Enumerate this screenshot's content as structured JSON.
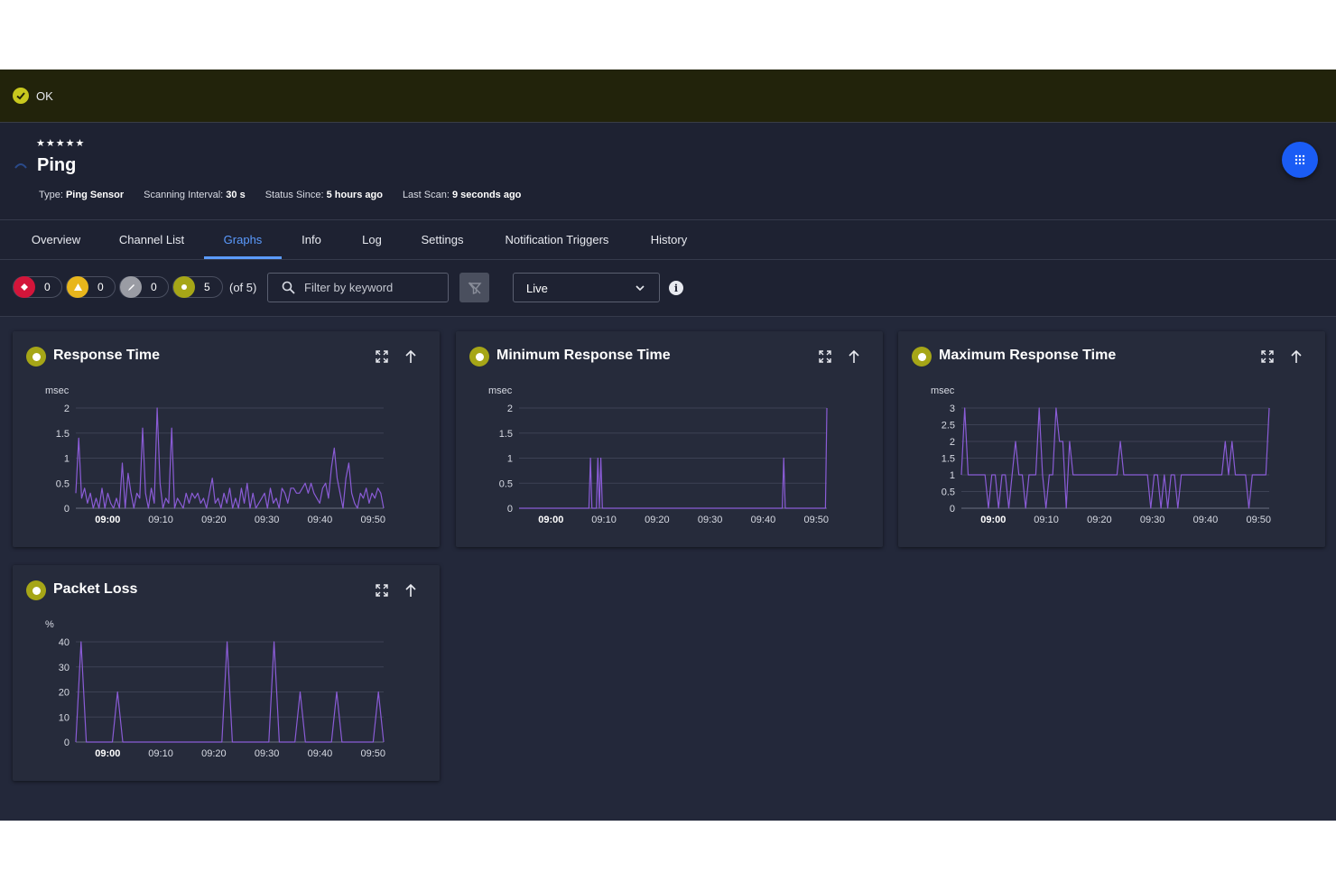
{
  "status": {
    "text": "OK",
    "icon": "check-circle-icon",
    "color": "#c8c81e"
  },
  "sensor": {
    "stars": "★★★★★",
    "name": "Ping",
    "type_label": "Type:",
    "type_value": "Ping Sensor",
    "interval_label": "Scanning Interval:",
    "interval_value": "30 s",
    "status_since_label": "Status Since:",
    "status_since_value": "5 hours ago",
    "last_scan_label": "Last Scan:",
    "last_scan_value": "9 seconds ago"
  },
  "tabs": [
    {
      "label": "Overview",
      "active": false
    },
    {
      "label": "Channel List",
      "active": false
    },
    {
      "label": "Graphs",
      "active": true
    },
    {
      "label": "Info",
      "active": false
    },
    {
      "label": "Log",
      "active": false
    },
    {
      "label": "Settings",
      "active": false
    },
    {
      "label": "Notification Triggers",
      "active": false
    },
    {
      "label": "History",
      "active": false
    }
  ],
  "filters": {
    "counts": [
      {
        "kind": "down",
        "count": "0",
        "color": "#d3153a"
      },
      {
        "kind": "warning",
        "count": "0",
        "color": "#e8b61c"
      },
      {
        "kind": "paused",
        "count": "0",
        "color": "#9a9ca4"
      },
      {
        "kind": "up",
        "count": "5",
        "color": "#a6a617"
      }
    ],
    "of_total": "(of 5)",
    "search_placeholder": "Filter by keyword",
    "range_selected": "Live"
  },
  "chart_data": [
    {
      "type": "line",
      "title": "Response Time",
      "ylabel": "msec",
      "ylim": [
        0,
        2
      ],
      "yticks": [
        "0",
        "0.5",
        "1",
        "1.5",
        "2"
      ],
      "xticks": [
        "09:00",
        "09:10",
        "09:20",
        "09:30",
        "09:40",
        "09:50"
      ],
      "bold_tick": "09:00",
      "x_range_min": [
        -6,
        52
      ],
      "series": [
        {
          "color": "#8a5cd6",
          "values": [
            0.3,
            1.4,
            0.2,
            0.4,
            0.1,
            0.3,
            0.0,
            0.2,
            0.0,
            0.4,
            0.0,
            0.3,
            0.1,
            0.0,
            0.2,
            0.0,
            0.9,
            0.0,
            0.7,
            0.3,
            0.0,
            0.3,
            0.2,
            1.6,
            0.3,
            0.0,
            0.4,
            0.1,
            2.0,
            0.5,
            0.0,
            0.2,
            0.1,
            1.6,
            0.0,
            0.2,
            0.1,
            0.0,
            0.3,
            0.1,
            0.3,
            0.2,
            0.3,
            0.1,
            0.2,
            0.0,
            0.3,
            0.6,
            0.1,
            0.2,
            0.0,
            0.3,
            0.1,
            0.4,
            0.0,
            0.2,
            0.0,
            0.4,
            0.1,
            0.5,
            0.0,
            0.3,
            0.0,
            0.1,
            0.2,
            0.3,
            0.0,
            0.4,
            0.1,
            0.2,
            0.0,
            0.4,
            0.3,
            0.1,
            0.4,
            0.4,
            0.3,
            0.3,
            0.4,
            0.5,
            0.3,
            0.5,
            0.3,
            0.2,
            0.1,
            0.4,
            0.5,
            0.2,
            0.8,
            1.2,
            0.6,
            0.3,
            0.0,
            0.6,
            0.9,
            0.3,
            0.1,
            0.0,
            0.3,
            0.2,
            0.4,
            0.1,
            0.3,
            0.2,
            0.4,
            0.3,
            0.0
          ]
        }
      ]
    },
    {
      "type": "line",
      "title": "Minimum Response Time",
      "ylabel": "msec",
      "ylim": [
        0,
        2
      ],
      "yticks": [
        "0",
        "0.5",
        "1",
        "1.5",
        "2"
      ],
      "xticks": [
        "09:00",
        "09:10",
        "09:20",
        "09:30",
        "09:40",
        "09:50"
      ],
      "bold_tick": "09:00",
      "x_range_min": [
        -6,
        52
      ],
      "series": [
        {
          "color": "#8a5cd6",
          "values": [
            0,
            0,
            0,
            0,
            0,
            0,
            0,
            0,
            0,
            0,
            0,
            0,
            0,
            0,
            0,
            0,
            0,
            0,
            0,
            0,
            0,
            0,
            0,
            0,
            0,
            0,
            0,
            0,
            0,
            0,
            0,
            0,
            0,
            0,
            0,
            0,
            0,
            0,
            0,
            0,
            0,
            0,
            0,
            0,
            0,
            0,
            0,
            0,
            1,
            0,
            0,
            0,
            0,
            1,
            0,
            1,
            0,
            0,
            0,
            0,
            0,
            0,
            0,
            0,
            0,
            0,
            0,
            0,
            0,
            0,
            0,
            0,
            0,
            0,
            0,
            0,
            0,
            0,
            0,
            0,
            0,
            0,
            0,
            0,
            0,
            0,
            0,
            0,
            0,
            0,
            0,
            0,
            0,
            0,
            0,
            0,
            0,
            0,
            0,
            0,
            0,
            0,
            0,
            0,
            0,
            0,
            0,
            0,
            0,
            0,
            0,
            0,
            0,
            0,
            0,
            0,
            0,
            0,
            0,
            0,
            0,
            0,
            0,
            0,
            0,
            0,
            0,
            0,
            0,
            0,
            0,
            0,
            0,
            0,
            0,
            0,
            0,
            0,
            0,
            0,
            0,
            0,
            0,
            0,
            0,
            0,
            0,
            0,
            0,
            0,
            0,
            0,
            0,
            0,
            0,
            0,
            0,
            0,
            0,
            0,
            0,
            0,
            0,
            0,
            0,
            0,
            0,
            0,
            0,
            0,
            0,
            0,
            0,
            0,
            0,
            0,
            0,
            0,
            1,
            0,
            0,
            0,
            0,
            0,
            0,
            0,
            0,
            0,
            0,
            0,
            0,
            0,
            0,
            0,
            0,
            0,
            0,
            0,
            0,
            0,
            0,
            0,
            0,
            0,
            0,
            0,
            0,
            2
          ]
        }
      ]
    },
    {
      "type": "line",
      "title": "Maximum Response Time",
      "ylabel": "msec",
      "ylim": [
        0,
        3
      ],
      "yticks": [
        "0",
        "0.5",
        "1",
        "1.5",
        "2",
        "2.5",
        "3"
      ],
      "xticks": [
        "09:00",
        "09:10",
        "09:20",
        "09:30",
        "09:40",
        "09:50"
      ],
      "bold_tick": "09:00",
      "x_range_min": [
        -6,
        52
      ],
      "series": [
        {
          "color": "#8a5cd6",
          "values": [
            1,
            3,
            1,
            1,
            1,
            1,
            1,
            1,
            0,
            1,
            1,
            0,
            1,
            1,
            0,
            1,
            2,
            1,
            1,
            0,
            1,
            1,
            1,
            3,
            1,
            0,
            1,
            1,
            3,
            2,
            2,
            0,
            2,
            1,
            1,
            1,
            1,
            1,
            1,
            1,
            1,
            1,
            1,
            1,
            1,
            1,
            1,
            2,
            1,
            1,
            1,
            1,
            1,
            1,
            1,
            1,
            0,
            1,
            1,
            0,
            1,
            0,
            1,
            1,
            0,
            1,
            1,
            1,
            1,
            1,
            1,
            1,
            1,
            1,
            1,
            1,
            1,
            1,
            2,
            1,
            2,
            1,
            1,
            1,
            1,
            0,
            1,
            1,
            1,
            1,
            1,
            3
          ]
        }
      ]
    },
    {
      "type": "line",
      "title": "Packet Loss",
      "ylabel": "%",
      "ylim": [
        0,
        40
      ],
      "yticks": [
        "0",
        "10",
        "20",
        "30",
        "40"
      ],
      "xticks": [
        "09:00",
        "09:10",
        "09:20",
        "09:30",
        "09:40",
        "09:50"
      ],
      "bold_tick": "09:00",
      "x_range_min": [
        -6,
        52
      ],
      "series": [
        {
          "color": "#8a5cd6",
          "values": [
            0,
            40,
            0,
            0,
            0,
            0,
            0,
            0,
            20,
            0,
            0,
            0,
            0,
            0,
            0,
            0,
            0,
            0,
            0,
            0,
            0,
            0,
            0,
            0,
            0,
            0,
            0,
            0,
            0,
            40,
            0,
            0,
            0,
            0,
            0,
            0,
            0,
            0,
            40,
            0,
            0,
            0,
            0,
            20,
            0,
            0,
            0,
            0,
            0,
            0,
            20,
            0,
            0,
            0,
            0,
            0,
            0,
            0,
            20,
            0
          ]
        }
      ]
    }
  ]
}
